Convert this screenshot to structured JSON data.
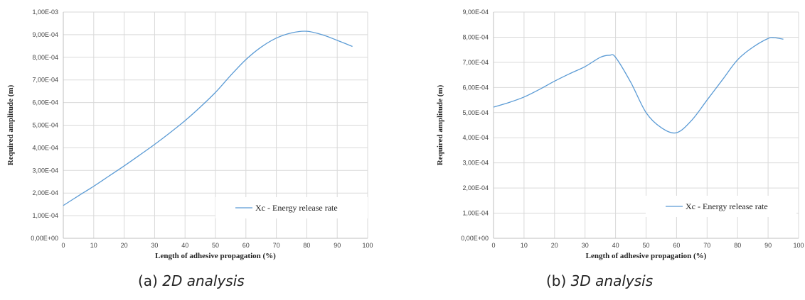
{
  "chart_data": [
    {
      "type": "line",
      "caption_prefix": "(a)",
      "caption_title": "2D analysis",
      "xlabel": "Length of adhesive propagation (%)",
      "ylabel": "Required amplitude (m)",
      "xlim": [
        0,
        100
      ],
      "ylim": [
        0,
        0.001
      ],
      "x_ticks": [
        "0",
        "10",
        "20",
        "30",
        "40",
        "50",
        "60",
        "70",
        "80",
        "90",
        "100"
      ],
      "y_ticks": [
        "0,00E+00",
        "1,00E-04",
        "2,00E-04",
        "3,00E-04",
        "4,00E-04",
        "5,00E-04",
        "6,00E-04",
        "7,00E-04",
        "8,00E-04",
        "9,00E-04",
        "1,00E-03"
      ],
      "grid": true,
      "legend_position": "bottom-right",
      "series": [
        {
          "name": "Xc - Energy release rate",
          "color": "#5b9bd5",
          "x": [
            0,
            5,
            10,
            15,
            20,
            25,
            30,
            35,
            40,
            45,
            50,
            55,
            60,
            65,
            70,
            75,
            80,
            85,
            90,
            95
          ],
          "y": [
            0.000145,
            0.000188,
            0.00023,
            0.000275,
            0.00032,
            0.000367,
            0.000415,
            0.000466,
            0.00052,
            0.00058,
            0.000645,
            0.00072,
            0.00079,
            0.000845,
            0.000885,
            0.000908,
            0.000915,
            0.0009,
            0.000875,
            0.000848
          ]
        }
      ]
    },
    {
      "type": "line",
      "caption_prefix": "(b)",
      "caption_title": "3D analysis",
      "xlabel": "Length of adhesive propagation (%)",
      "ylabel": "Required amplitude (m)",
      "xlim": [
        0,
        100
      ],
      "ylim": [
        0,
        0.0009
      ],
      "x_ticks": [
        "0",
        "10",
        "20",
        "30",
        "40",
        "50",
        "60",
        "70",
        "80",
        "90",
        "100"
      ],
      "y_ticks": [
        "0,00E+00",
        "1,00E-04",
        "2,00E-04",
        "3,00E-04",
        "4,00E-04",
        "5,00E-04",
        "6,00E-04",
        "7,00E-04",
        "8,00E-04",
        "9,00E-04"
      ],
      "grid": true,
      "legend_position": "bottom-right",
      "series": [
        {
          "name": "Xc - Energy release rate",
          "color": "#5b9bd5",
          "x": [
            0,
            5,
            10,
            15,
            20,
            25,
            30,
            35,
            38,
            40,
            45,
            50,
            55,
            60,
            65,
            70,
            75,
            80,
            85,
            90,
            92,
            95
          ],
          "y": [
            0.000522,
            0.00054,
            0.000562,
            0.000592,
            0.000625,
            0.000655,
            0.000683,
            0.00072,
            0.000728,
            0.00072,
            0.00062,
            0.0005,
            0.00044,
            0.00042,
            0.00047,
            0.00055,
            0.00063,
            0.00071,
            0.00076,
            0.000795,
            0.000798,
            0.000792
          ]
        }
      ]
    }
  ]
}
